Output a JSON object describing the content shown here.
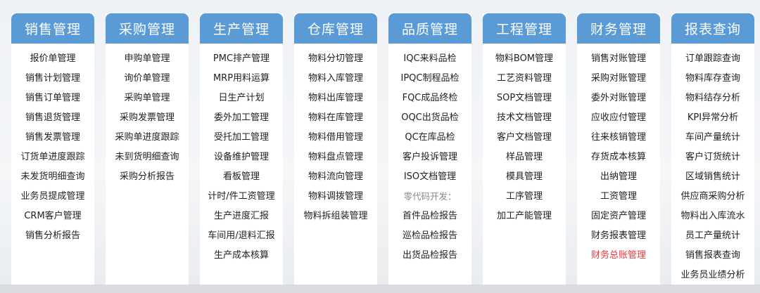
{
  "columns": [
    {
      "title": "销售管理",
      "items": [
        {
          "label": "报价单管理"
        },
        {
          "label": "销售计划管理"
        },
        {
          "label": "销售订单管理"
        },
        {
          "label": "销售退货管理"
        },
        {
          "label": "销售发票管理"
        },
        {
          "label": "订货单进度跟踪"
        },
        {
          "label": "未发货明细查询"
        },
        {
          "label": "业务员提成管理"
        },
        {
          "label": "CRM客户管理"
        },
        {
          "label": "销售分析报告"
        }
      ]
    },
    {
      "title": "采购管理",
      "items": [
        {
          "label": "申购单管理"
        },
        {
          "label": "询价单管理"
        },
        {
          "label": "采购单管理"
        },
        {
          "label": "采购发票管理"
        },
        {
          "label": "采购单进度跟踪"
        },
        {
          "label": "未到货明细查询"
        },
        {
          "label": "采购分析报告"
        }
      ]
    },
    {
      "title": "生产管理",
      "items": [
        {
          "label": "PMC排产管理"
        },
        {
          "label": "MRP用料运算"
        },
        {
          "label": "日生产计划"
        },
        {
          "label": "委外加工管理"
        },
        {
          "label": "受托加工管理"
        },
        {
          "label": "设备维护管理"
        },
        {
          "label": "看板管理"
        },
        {
          "label": "计时/件工资管理"
        },
        {
          "label": "生产进度汇报"
        },
        {
          "label": "车间用/退料汇报"
        },
        {
          "label": "生产成本核算"
        }
      ]
    },
    {
      "title": "仓库管理",
      "items": [
        {
          "label": "物料分切管理"
        },
        {
          "label": "物料入库管理"
        },
        {
          "label": "物料出库管理"
        },
        {
          "label": "物料在库管理"
        },
        {
          "label": "物料借用管理"
        },
        {
          "label": "物料盘点管理"
        },
        {
          "label": "物料流向管理"
        },
        {
          "label": "物料调拨管理"
        },
        {
          "label": "物料拆组装管理"
        }
      ]
    },
    {
      "title": "品质管理",
      "items": [
        {
          "label": "IQC来料品检"
        },
        {
          "label": "IPQC制程品检"
        },
        {
          "label": "FQC成品终检"
        },
        {
          "label": "OQC出货品检"
        },
        {
          "label": "QC在库品检"
        },
        {
          "label": "客户投诉管理"
        },
        {
          "label": "ISO文档管理"
        },
        {
          "label": "零代码开发：",
          "style": "note"
        },
        {
          "label": "首件品检报告"
        },
        {
          "label": "巡检品检报告"
        },
        {
          "label": "出货品检报告"
        }
      ]
    },
    {
      "title": "工程管理",
      "items": [
        {
          "label": "物料BOM管理"
        },
        {
          "label": "工艺资料管理"
        },
        {
          "label": "SOP文档管理"
        },
        {
          "label": "技术文档管理"
        },
        {
          "label": "客户文档管理"
        },
        {
          "label": "样品管理"
        },
        {
          "label": "模具管理"
        },
        {
          "label": "工序管理"
        },
        {
          "label": "加工产能管理"
        }
      ]
    },
    {
      "title": "财务管理",
      "items": [
        {
          "label": "销售对账管理"
        },
        {
          "label": "采购对账管理"
        },
        {
          "label": "委外对账管理"
        },
        {
          "label": "应收应付管理"
        },
        {
          "label": "往来核销管理"
        },
        {
          "label": "存货成本核算"
        },
        {
          "label": "出纳管理"
        },
        {
          "label": "工资管理"
        },
        {
          "label": "固定资产管理"
        },
        {
          "label": "财务报表管理"
        },
        {
          "label": "财务总账管理",
          "style": "red"
        }
      ]
    },
    {
      "title": "报表查询",
      "items": [
        {
          "label": "订单跟踪查询"
        },
        {
          "label": "物料库存查询"
        },
        {
          "label": "物料结存分析"
        },
        {
          "label": "KPI异常分析"
        },
        {
          "label": "车间产量统计"
        },
        {
          "label": "客户订货统计"
        },
        {
          "label": "区域销售统计"
        },
        {
          "label": "供应商采购分析"
        },
        {
          "label": "物料出入库流水"
        },
        {
          "label": "员工产量统计"
        },
        {
          "label": "销售报表查询"
        },
        {
          "label": "业务员业绩分析"
        }
      ]
    }
  ],
  "colors": {
    "header": "#5b9bd5",
    "highlight": "#e2393e",
    "note": "#888888"
  }
}
